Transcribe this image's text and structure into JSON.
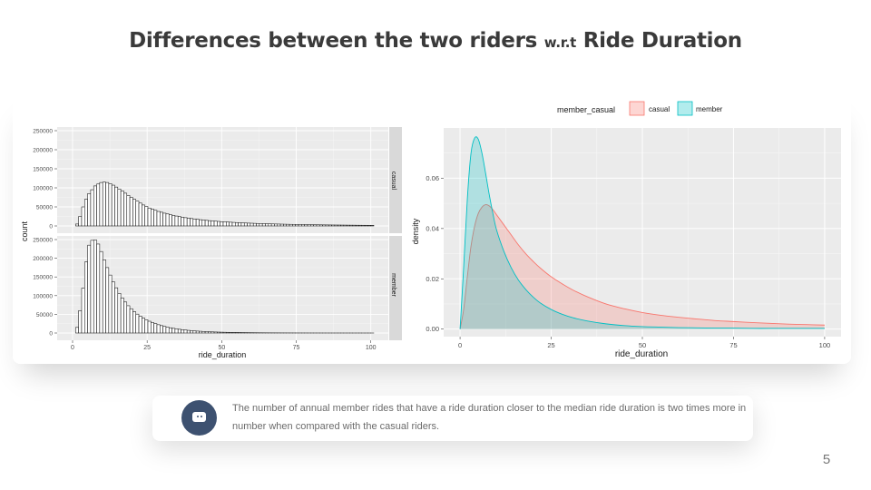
{
  "slide": {
    "title_main": "Differences between the two riders",
    "title_small": "w.r.t",
    "title_end": "Ride Duration",
    "page_number": "5"
  },
  "callout": {
    "icon": "chat-bubble-icon",
    "text": "The number of annual member rides that have a ride duration closer to the median ride duration is two times more in number when compared with the casual riders."
  },
  "colors": {
    "casual": "#f8766d",
    "member": "#00bfc4",
    "panel_bg": "#ebebeb",
    "strip_bg": "#d9d9d9",
    "icon_bg": "#3d5170"
  },
  "chart_data": [
    {
      "type": "bar",
      "facets": [
        {
          "name": "casual",
          "ylim": [
            0,
            250000
          ],
          "values": [
            0,
            5000,
            25000,
            50000,
            70000,
            85000,
            95000,
            105000,
            110000,
            114000,
            115000,
            114000,
            111000,
            107000,
            102000,
            97000,
            92000,
            86000,
            80000,
            75000,
            70000,
            65000,
            60000,
            55000,
            51000,
            47000,
            44000,
            41000,
            38000,
            36000,
            33500,
            31500,
            29500,
            27500,
            26000,
            24500,
            23000,
            21700,
            20500,
            19400,
            18300,
            17300,
            16400,
            15500,
            14700,
            13900,
            13200,
            12500,
            11900,
            11300,
            10800,
            10300,
            9800,
            9300,
            8900,
            8500,
            8100,
            7700,
            7400,
            7100,
            6800,
            6500,
            6200,
            6000,
            5700,
            5500,
            5300,
            5100,
            4900,
            4700,
            4500,
            4350,
            4200,
            4050,
            3900,
            3750,
            3600,
            3500,
            3350,
            3250,
            3100,
            3000,
            2900,
            2800,
            2700,
            2600,
            2500,
            2400,
            2350,
            2250,
            2200,
            2100,
            2050,
            2000,
            1900,
            1850,
            1800,
            1750,
            1700,
            1650
          ]
        },
        {
          "name": "member",
          "ylim": [
            0,
            250000
          ],
          "values": [
            0,
            15000,
            60000,
            120000,
            190000,
            235000,
            248000,
            249000,
            238000,
            218000,
            196000,
            175000,
            155000,
            137000,
            121000,
            106000,
            94000,
            83000,
            73000,
            65000,
            57000,
            50500,
            45000,
            40000,
            35500,
            31500,
            28000,
            25000,
            22200,
            19800,
            17600,
            15700,
            14000,
            12500,
            11200,
            10000,
            8900,
            8000,
            7100,
            6400,
            5700,
            5100,
            4600,
            4100,
            3700,
            3300,
            3000,
            2700,
            2400,
            2200,
            2000,
            1800,
            1600,
            1450,
            1300,
            1200,
            1050,
            950,
            860,
            780,
            700,
            630,
            570,
            510,
            460,
            420,
            380,
            340,
            310,
            280,
            250,
            230,
            210,
            190,
            170,
            150,
            140,
            125,
            115,
            100,
            90,
            82,
            75,
            68,
            61,
            55,
            50,
            45,
            41,
            37,
            33,
            30,
            27,
            24,
            22,
            20,
            18,
            16,
            14,
            12
          ]
        }
      ],
      "x": {
        "start": 0,
        "end": 100,
        "bin_width": 1
      },
      "xlabel": "ride_duration",
      "ylabel": "count",
      "xticks": [
        0,
        25,
        50,
        75,
        100
      ],
      "xtick_labels": [
        "0",
        "25",
        "50",
        "75",
        "100"
      ],
      "yticks": [
        0,
        50000,
        100000,
        150000,
        200000,
        250000
      ],
      "ytick_labels": [
        "0",
        "50000",
        "100000",
        "150000",
        "200000",
        "250000"
      ],
      "grid": true
    },
    {
      "type": "area",
      "x": [
        0,
        1,
        2,
        3,
        4,
        5,
        6,
        7,
        8,
        9,
        10,
        12,
        14,
        16,
        18,
        20,
        22,
        25,
        28,
        31,
        35,
        40,
        45,
        50,
        55,
        60,
        65,
        70,
        75,
        80,
        85,
        90,
        95,
        100
      ],
      "series": [
        {
          "name": "casual",
          "color": "#f8766d",
          "values": [
            0,
            0.008,
            0.021,
            0.033,
            0.041,
            0.046,
            0.0485,
            0.0495,
            0.049,
            0.0475,
            0.0455,
            0.0415,
            0.0375,
            0.0335,
            0.03,
            0.027,
            0.0243,
            0.0208,
            0.018,
            0.0155,
            0.0128,
            0.01,
            0.0081,
            0.0066,
            0.0055,
            0.0047,
            0.004,
            0.0034,
            0.003,
            0.0026,
            0.0023,
            0.002,
            0.0018,
            0.0016
          ]
        },
        {
          "name": "member",
          "color": "#00bfc4",
          "values": [
            0,
            0.025,
            0.052,
            0.07,
            0.076,
            0.0755,
            0.07,
            0.062,
            0.0535,
            0.046,
            0.0395,
            0.031,
            0.0245,
            0.0195,
            0.0158,
            0.0128,
            0.0104,
            0.0078,
            0.0059,
            0.0045,
            0.0032,
            0.0021,
            0.0014,
            0.001,
            0.0008,
            0.0006,
            0.0005,
            0.0004,
            0.0004,
            0.0003,
            0.0003,
            0.0003,
            0.0003,
            0.0003
          ]
        }
      ],
      "legend_title": "member_casual",
      "legend_position": "top",
      "xlabel": "ride_duration",
      "ylabel": "density",
      "xlim": [
        0,
        100
      ],
      "ylim": [
        -0.003,
        0.08
      ],
      "xticks": [
        0,
        25,
        50,
        75,
        100
      ],
      "xtick_labels": [
        "0",
        "25",
        "50",
        "75",
        "100"
      ],
      "yticks": [
        0,
        0.02,
        0.04,
        0.06
      ],
      "ytick_labels": [
        "0.00",
        "0.02",
        "0.04",
        "0.06"
      ],
      "grid": true
    }
  ]
}
